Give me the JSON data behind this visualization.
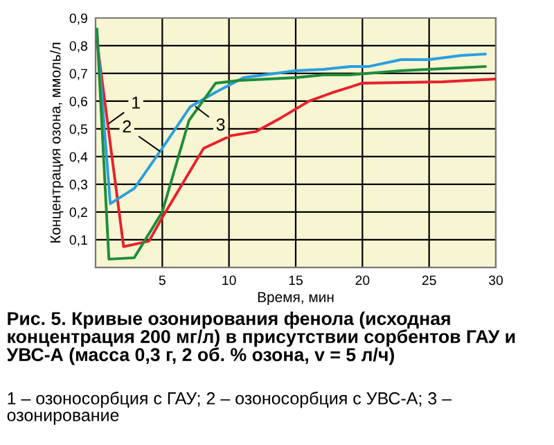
{
  "chart_data": {
    "type": "line",
    "xlabel": "Время, мин",
    "ylabel": "Концентрация озона, ммоль/л",
    "xlim": [
      0,
      30
    ],
    "ylim": [
      0,
      0.9
    ],
    "xticks": [
      5,
      10,
      15,
      20,
      25,
      30
    ],
    "yticks": [
      {
        "value": 0.1,
        "label": "0,1"
      },
      {
        "value": 0.2,
        "label": "0,2"
      },
      {
        "value": 0.3,
        "label": "0,3"
      },
      {
        "value": 0.4,
        "label": "0,4"
      },
      {
        "value": 0.5,
        "label": "0,5"
      },
      {
        "value": 0.6,
        "label": "0,6"
      },
      {
        "value": 0.7,
        "label": "0,7"
      },
      {
        "value": 0.8,
        "label": "0,8"
      },
      {
        "value": 0.9,
        "label": "0,9"
      }
    ],
    "grid": true,
    "legend": false,
    "marker": "none",
    "line_style": "solid",
    "series": [
      {
        "color": "#e8202a",
        "x": [
          0.1,
          2.1,
          4,
          5,
          8.1,
          10.1,
          12,
          13.9,
          16,
          17.7,
          20,
          26,
          30
        ],
        "values": [
          0.82,
          0.075,
          0.095,
          0.18,
          0.43,
          0.475,
          0.49,
          0.54,
          0.6,
          0.63,
          0.665,
          0.67,
          0.68
        ]
      },
      {
        "color": "#2a9fe0",
        "x": [
          0.1,
          1.1,
          2.9,
          5,
          7.1,
          9.1,
          11.1,
          15,
          17.1,
          19.1,
          20.5,
          22.9,
          25,
          27.4,
          29.2
        ],
        "values": [
          0.85,
          0.23,
          0.285,
          0.43,
          0.58,
          0.635,
          0.685,
          0.71,
          0.715,
          0.725,
          0.725,
          0.75,
          0.75,
          0.765,
          0.77
        ]
      },
      {
        "color": "#1e8c3a",
        "x": [
          0.1,
          1,
          2.9,
          5,
          7,
          9,
          10.8,
          15,
          17.1,
          19.1,
          22.9,
          25,
          29.2
        ],
        "values": [
          0.86,
          0.03,
          0.035,
          0.2,
          0.53,
          0.665,
          0.675,
          0.685,
          0.695,
          0.695,
          0.71,
          0.715,
          0.725
        ]
      }
    ],
    "annotations": [
      {
        "text": "1",
        "x": 1,
        "y": 0.52
      },
      {
        "text": "2",
        "x": 4.8,
        "y": 0.42
      },
      {
        "text": "3",
        "x": 7.5,
        "y": 0.58
      },
      "Рис. 5. Кривые озонирования фенола (исходная концентрация 200 мг/л) в присутствии сорбентов ГАУ и УВС-А (масса 0,3 г, 2 об. % озона, v = 5 л/ч)",
      "1 – озоносорбция с ГАУ; 2 – озоносорбция с УВС-А; 3 – озонирование"
    ]
  }
}
